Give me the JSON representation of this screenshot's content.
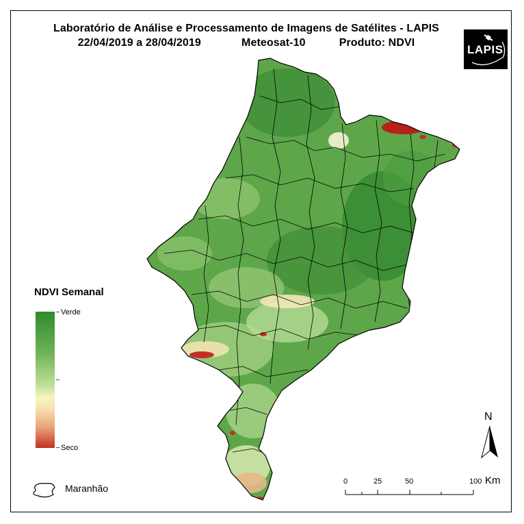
{
  "title": {
    "line1": "Laboratório de Análise e Processamento de Imagens de Satélites - LAPIS",
    "period": "22/04/2019  a 28/04/2019",
    "satellite": "Meteosat-10",
    "product": "Produto: NDVI"
  },
  "logo": {
    "text": "LAPIS"
  },
  "legend": {
    "title": "NDVI Semanal",
    "top_label": "Verde",
    "bottom_label": "Seco"
  },
  "boundary_legend": {
    "label": "Maranhão"
  },
  "north_arrow": {
    "label": "N"
  },
  "scale_bar": {
    "ticks": [
      "0",
      "25",
      "50",
      "100"
    ],
    "unit": "Km"
  },
  "colors": {
    "green_dark": "#2f8a2d",
    "green_mid": "#6db356",
    "yellow": "#f6f6c0",
    "dry_red": "#c23024"
  }
}
